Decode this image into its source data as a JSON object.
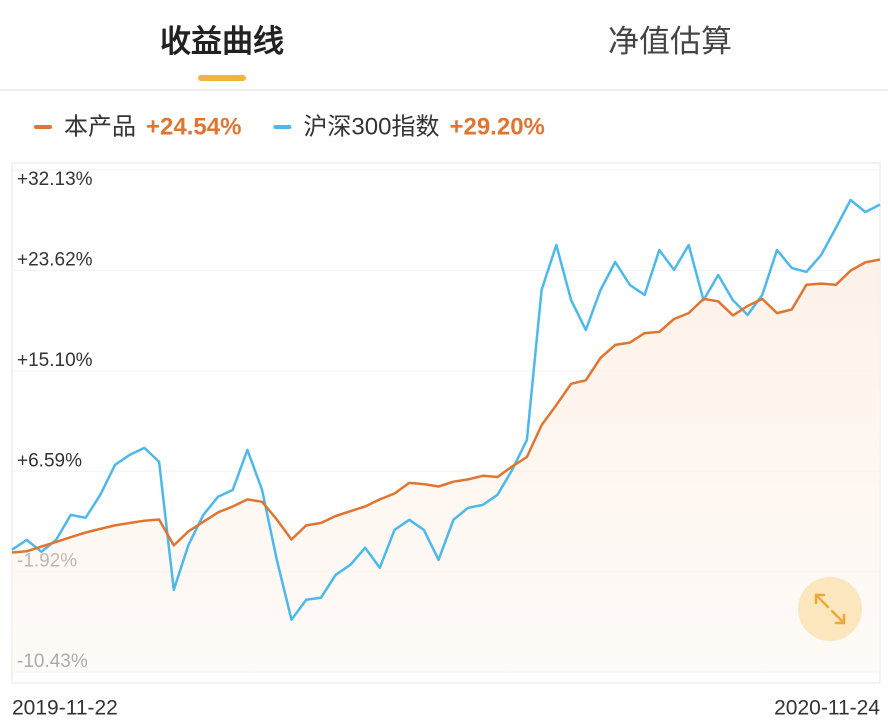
{
  "tabs": {
    "active": "收益曲线",
    "other": "净值估算"
  },
  "chart_data": {
    "type": "line",
    "categories": [
      "2019-11-22",
      null,
      null,
      null,
      null,
      null,
      null,
      null,
      null,
      null,
      null,
      null,
      null,
      null,
      null,
      null,
      null,
      null,
      null,
      null,
      null,
      null,
      null,
      null,
      null,
      null,
      null,
      null,
      null,
      null,
      null,
      null,
      null,
      null,
      null,
      null,
      null,
      null,
      null,
      null,
      null,
      null,
      null,
      null,
      null,
      null,
      null,
      null,
      null,
      null,
      null,
      null,
      null,
      null,
      null,
      null,
      null,
      null,
      null,
      "2020-11-24"
    ],
    "series": [
      {
        "name": "本产品",
        "legend_label": "+24.54%",
        "color": "#e07532",
        "values": [
          -0.3,
          -0.2,
          0.2,
          0.6,
          1.0,
          1.4,
          1.7,
          2.0,
          2.2,
          2.4,
          2.5,
          0.3,
          1.5,
          2.3,
          3.1,
          3.6,
          4.2,
          4.0,
          2.5,
          0.8,
          2.0,
          2.2,
          2.8,
          3.2,
          3.6,
          4.2,
          4.7,
          5.6,
          5.5,
          5.3,
          5.7,
          5.9,
          6.2,
          6.1,
          7.0,
          7.8,
          10.5,
          12.2,
          14.0,
          14.3,
          16.2,
          17.3,
          17.5,
          18.3,
          18.4,
          19.5,
          20.0,
          21.2,
          21.0,
          19.8,
          20.6,
          21.2,
          20.0,
          20.3,
          22.4,
          22.5,
          22.4,
          23.6,
          24.3,
          24.54
        ]
      },
      {
        "name": "沪深300指数",
        "legend_label": "+29.20%",
        "color": "#4db8ea",
        "values": [
          -0.07,
          0.77,
          -0.24,
          0.77,
          2.89,
          2.64,
          4.59,
          7.13,
          7.98,
          8.57,
          7.38,
          -3.46,
          0.35,
          2.89,
          4.42,
          5.0,
          8.4,
          5.0,
          -0.92,
          -6.0,
          -4.31,
          -4.14,
          -2.19,
          -1.34,
          0.1,
          -1.6,
          1.62,
          2.47,
          1.62,
          -0.92,
          2.47,
          3.49,
          3.74,
          4.59,
          6.71,
          9.25,
          21.96,
          25.77,
          21.1,
          18.57,
          21.96,
          24.33,
          22.38,
          21.54,
          25.35,
          23.66,
          25.77,
          21.1,
          23.23,
          21.1,
          19.84,
          21.54,
          25.35,
          23.83,
          23.49,
          24.93,
          27.22,
          29.59,
          28.57,
          29.2
        ]
      }
    ],
    "ylim": [
      -10.43,
      32.13
    ],
    "yticks": [
      {
        "value": 32.13,
        "label": "+32.13%"
      },
      {
        "value": 23.62,
        "label": "+23.62%"
      },
      {
        "value": 15.1,
        "label": "+15.10%"
      },
      {
        "value": 6.59,
        "label": "+6.59%"
      },
      {
        "value": -1.92,
        "label": "-1.92%"
      },
      {
        "value": -10.43,
        "label": "-10.43%"
      }
    ],
    "grid": true
  }
}
